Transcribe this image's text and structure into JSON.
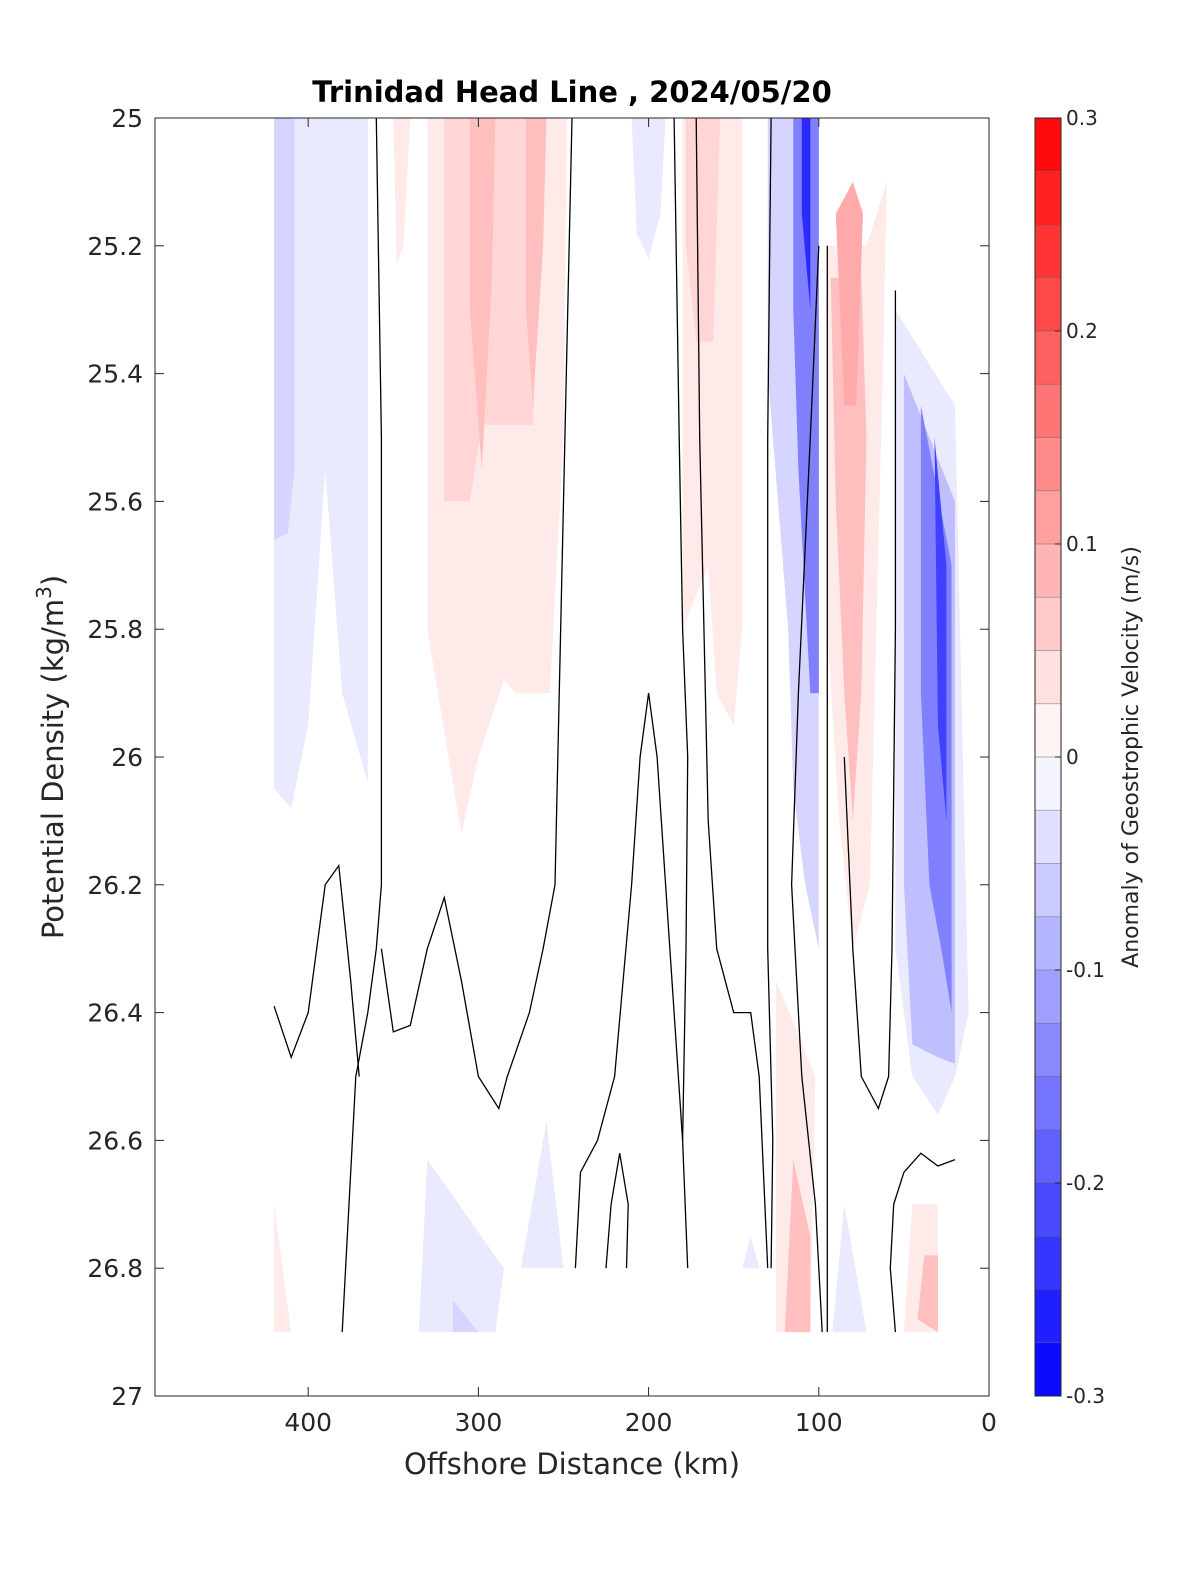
{
  "chart_data": {
    "type": "heatmap",
    "title": "Trinidad Head Line , 2024/05/20",
    "xlabel": "Offshore Distance (km)",
    "ylabel_main": "Potential Density (kg/m",
    "ylabel_sup": "3",
    "ylabel_close": ")",
    "colorbar_label": "Anomaly of Geostrophic Velocity (m/s)",
    "xlim": [
      490,
      0
    ],
    "ylim": [
      25,
      27
    ],
    "x_reversed": true,
    "y_reversed": true,
    "x_ticks": [
      400,
      300,
      200,
      100,
      0
    ],
    "x_tick_labels": [
      "400",
      "300",
      "200",
      "100",
      "0"
    ],
    "y_ticks": [
      25,
      25.2,
      25.4,
      25.6,
      25.8,
      26,
      26.2,
      26.4,
      26.6,
      26.8,
      27
    ],
    "y_tick_labels": [
      "25",
      "25.2",
      "25.4",
      "25.6",
      "25.8",
      "26",
      "26.2",
      "26.4",
      "26.6",
      "26.8",
      "27"
    ],
    "colorbar_range": [
      -0.3,
      0.3
    ],
    "colorbar_step": 0.025,
    "colorbar_ticks": [
      0.3,
      0.2,
      0.1,
      0,
      -0.1,
      -0.2,
      -0.3
    ],
    "colorbar_tick_labels": [
      "0.3",
      "0.2",
      "0.1",
      "0",
      "-0.1",
      "-0.2",
      "-0.3"
    ],
    "colormap_low": "#0000ff",
    "colormap_mid": "#ffffff",
    "colormap_high": "#ff0000",
    "zero_contour_color": "#000000",
    "regions": [
      {
        "v": -0.025,
        "pts": [
          [
            420,
            25
          ],
          [
            365,
            25
          ],
          [
            365,
            26.04
          ],
          [
            380,
            25.9
          ],
          [
            390,
            25.55
          ],
          [
            400,
            25.95
          ],
          [
            410,
            26.08
          ],
          [
            420,
            26.05
          ]
        ]
      },
      {
        "v": -0.05,
        "pts": [
          [
            420,
            25
          ],
          [
            408,
            25
          ],
          [
            408,
            25.55
          ],
          [
            412,
            25.65
          ],
          [
            420,
            25.66
          ]
        ]
      },
      {
        "v": 0.025,
        "pts": [
          [
            350,
            25
          ],
          [
            340,
            25
          ],
          [
            344,
            25.2
          ],
          [
            348,
            25.23
          ]
        ]
      },
      {
        "v": 0.025,
        "pts": [
          [
            330,
            25
          ],
          [
            248,
            25
          ],
          [
            250,
            25.5
          ],
          [
            258,
            25.9
          ],
          [
            278,
            25.9
          ],
          [
            285,
            25.88
          ],
          [
            300,
            26
          ],
          [
            310,
            26.12
          ],
          [
            330,
            25.8
          ]
        ]
      },
      {
        "v": 0.05,
        "pts": [
          [
            320,
            25
          ],
          [
            262,
            25
          ],
          [
            268,
            25.48
          ],
          [
            298,
            25.48
          ],
          [
            305,
            25.6
          ],
          [
            320,
            25.6
          ]
        ]
      },
      {
        "v": 0.075,
        "pts": [
          [
            305,
            25
          ],
          [
            290,
            25
          ],
          [
            292,
            25.25
          ],
          [
            298,
            25.55
          ],
          [
            305,
            25.3
          ]
        ]
      },
      {
        "v": 0.075,
        "pts": [
          [
            272,
            25
          ],
          [
            260,
            25
          ],
          [
            262,
            25.2
          ],
          [
            268,
            25.45
          ],
          [
            272,
            25.3
          ]
        ]
      },
      {
        "v": -0.025,
        "pts": [
          [
            210,
            25
          ],
          [
            190,
            25
          ],
          [
            193,
            25.15
          ],
          [
            200,
            25.22
          ],
          [
            207,
            25.18
          ]
        ]
      },
      {
        "v": 0.025,
        "pts": [
          [
            180,
            25
          ],
          [
            145,
            25
          ],
          [
            145,
            25.8
          ],
          [
            150,
            25.95
          ],
          [
            160,
            25.9
          ],
          [
            165,
            25.7
          ],
          [
            180,
            25.8
          ]
        ]
      },
      {
        "v": 0.05,
        "pts": [
          [
            178,
            25
          ],
          [
            158,
            25
          ],
          [
            162,
            25.35
          ],
          [
            172,
            25.35
          ],
          [
            178,
            25.2
          ]
        ]
      },
      {
        "v": -0.05,
        "pts": [
          [
            130,
            25
          ],
          [
            100,
            25
          ],
          [
            100,
            26.3
          ],
          [
            108,
            26.2
          ],
          [
            115,
            26.05
          ],
          [
            118,
            25.8
          ],
          [
            130,
            25.4
          ]
        ]
      },
      {
        "v": -0.15,
        "pts": [
          [
            115,
            25
          ],
          [
            100,
            25
          ],
          [
            100,
            25.9
          ],
          [
            105,
            25.9
          ],
          [
            112,
            25.55
          ],
          [
            115,
            25.3
          ]
        ]
      },
      {
        "v": -0.25,
        "pts": [
          [
            110,
            25
          ],
          [
            105,
            25
          ],
          [
            105,
            25.3
          ],
          [
            110,
            25.15
          ]
        ]
      },
      {
        "v": 0.025,
        "pts": [
          [
            95,
            25.2
          ],
          [
            72,
            25.2
          ],
          [
            60,
            25.1
          ],
          [
            62,
            25.35
          ],
          [
            70,
            26.2
          ],
          [
            80,
            26.3
          ],
          [
            88,
            26.1
          ],
          [
            95,
            25.8
          ]
        ]
      },
      {
        "v": 0.075,
        "pts": [
          [
            93,
            25.25
          ],
          [
            75,
            25.25
          ],
          [
            72,
            25.5
          ],
          [
            75,
            25.9
          ],
          [
            80,
            26.1
          ],
          [
            85,
            25.9
          ],
          [
            90,
            25.6
          ]
        ]
      },
      {
        "v": 0.1,
        "pts": [
          [
            90,
            25.15
          ],
          [
            80,
            25.1
          ],
          [
            74,
            25.15
          ],
          [
            78,
            25.45
          ],
          [
            85,
            25.45
          ]
        ]
      },
      {
        "v": -0.025,
        "pts": [
          [
            55,
            25.3
          ],
          [
            20,
            25.45
          ],
          [
            12,
            26.4
          ],
          [
            20,
            26.5
          ],
          [
            30,
            26.56
          ],
          [
            45,
            26.5
          ],
          [
            55,
            26.3
          ]
        ]
      },
      {
        "v": -0.075,
        "pts": [
          [
            50,
            25.4
          ],
          [
            20,
            25.6
          ],
          [
            20,
            26.48
          ],
          [
            30,
            26.47
          ],
          [
            45,
            26.45
          ],
          [
            50,
            26.2
          ]
        ]
      },
      {
        "v": -0.15,
        "pts": [
          [
            40,
            25.45
          ],
          [
            22,
            25.7
          ],
          [
            22,
            26.4
          ],
          [
            28,
            26.3
          ],
          [
            35,
            26.2
          ],
          [
            40,
            25.9
          ]
        ]
      },
      {
        "v": -0.225,
        "pts": [
          [
            32,
            25.5
          ],
          [
            25,
            25.7
          ],
          [
            25,
            26.1
          ],
          [
            30,
            25.95
          ]
        ]
      },
      {
        "v": 0.025,
        "pts": [
          [
            420,
            26.7
          ],
          [
            410,
            26.9
          ],
          [
            420,
            26.9
          ]
        ]
      },
      {
        "v": -0.025,
        "pts": [
          [
            330,
            26.63
          ],
          [
            285,
            26.8
          ],
          [
            290,
            26.9
          ],
          [
            335,
            26.9
          ]
        ]
      },
      {
        "v": -0.05,
        "pts": [
          [
            315,
            26.85
          ],
          [
            300,
            26.9
          ],
          [
            315,
            26.9
          ]
        ]
      },
      {
        "v": -0.025,
        "pts": [
          [
            260,
            26.57
          ],
          [
            250,
            26.8
          ],
          [
            275,
            26.8
          ]
        ]
      },
      {
        "v": -0.025,
        "pts": [
          [
            140,
            26.75
          ],
          [
            135,
            26.8
          ],
          [
            145,
            26.8
          ]
        ]
      },
      {
        "v": 0.025,
        "pts": [
          [
            125,
            26.35
          ],
          [
            102,
            26.5
          ],
          [
            105,
            26.9
          ],
          [
            125,
            26.9
          ]
        ]
      },
      {
        "v": 0.075,
        "pts": [
          [
            115,
            26.63
          ],
          [
            105,
            26.75
          ],
          [
            105,
            26.9
          ],
          [
            120,
            26.9
          ]
        ]
      },
      {
        "v": -0.025,
        "pts": [
          [
            85,
            26.7
          ],
          [
            72,
            26.9
          ],
          [
            92,
            26.9
          ]
        ]
      },
      {
        "v": 0.025,
        "pts": [
          [
            45,
            26.7
          ],
          [
            30,
            26.7
          ],
          [
            30,
            26.9
          ],
          [
            50,
            26.9
          ]
        ]
      },
      {
        "v": 0.075,
        "pts": [
          [
            38,
            26.78
          ],
          [
            30,
            26.78
          ],
          [
            30,
            26.9
          ],
          [
            42,
            26.88
          ]
        ]
      }
    ],
    "contours": [
      [
        [
          360,
          25
        ],
        [
          357,
          25.5
        ],
        [
          357,
          26.2
        ],
        [
          360,
          26.3
        ],
        [
          365,
          26.4
        ],
        [
          372,
          26.5
        ],
        [
          378,
          26.8
        ],
        [
          380,
          26.9
        ]
      ],
      [
        [
          245,
          25
        ],
        [
          250,
          25.6
        ],
        [
          255,
          26.2
        ],
        [
          262,
          26.3
        ],
        [
          270,
          26.4
        ],
        [
          283,
          26.5
        ],
        [
          288,
          26.55
        ],
        [
          300,
          26.5
        ],
        [
          310,
          26.35
        ],
        [
          320,
          26.22
        ],
        [
          330,
          26.3
        ],
        [
          340,
          26.42
        ],
        [
          350,
          26.43
        ],
        [
          357,
          26.3
        ]
      ],
      [
        [
          420,
          26.39
        ],
        [
          410,
          26.47
        ],
        [
          400,
          26.4
        ],
        [
          390,
          26.2
        ],
        [
          382,
          26.17
        ],
        [
          375,
          26.35
        ],
        [
          370,
          26.5
        ]
      ],
      [
        [
          185,
          25
        ],
        [
          182,
          25.5
        ],
        [
          180,
          25.8
        ],
        [
          177,
          26
        ],
        [
          178,
          26.3
        ],
        [
          180,
          26.6
        ],
        [
          177,
          26.8
        ]
      ],
      [
        [
          243,
          26.8
        ],
        [
          240,
          26.65
        ],
        [
          230,
          26.6
        ],
        [
          220,
          26.5
        ],
        [
          210,
          26.2
        ],
        [
          205,
          26
        ],
        [
          200,
          25.9
        ],
        [
          195,
          26
        ],
        [
          190,
          26.2
        ],
        [
          185,
          26.4
        ],
        [
          180,
          26.6
        ]
      ],
      [
        [
          225,
          26.8
        ],
        [
          222,
          26.7
        ],
        [
          217,
          26.62
        ],
        [
          212,
          26.7
        ],
        [
          213,
          26.8
        ]
      ],
      [
        [
          128,
          25
        ],
        [
          130,
          25.5
        ],
        [
          130,
          26.3
        ],
        [
          127,
          26.6
        ],
        [
          128,
          26.8
        ]
      ],
      [
        [
          172,
          25
        ],
        [
          170,
          25.5
        ],
        [
          165,
          26.1
        ],
        [
          160,
          26.3
        ],
        [
          150,
          26.4
        ],
        [
          140,
          26.4
        ],
        [
          135,
          26.5
        ],
        [
          130,
          26.8
        ]
      ],
      [
        [
          95,
          25.2
        ],
        [
          95,
          26.9
        ]
      ],
      [
        [
          100,
          25.2
        ],
        [
          105,
          25.5
        ],
        [
          112,
          25.9
        ],
        [
          116,
          26.2
        ],
        [
          110,
          26.5
        ],
        [
          102,
          26.7
        ],
        [
          98,
          26.9
        ]
      ],
      [
        [
          55,
          25.27
        ],
        [
          55,
          25.8
        ],
        [
          57,
          26.3
        ],
        [
          59,
          26.5
        ],
        [
          65,
          26.55
        ],
        [
          75,
          26.5
        ],
        [
          80,
          26.3
        ],
        [
          85,
          26.0
        ]
      ],
      [
        [
          55,
          26.9
        ],
        [
          58,
          26.8
        ],
        [
          56,
          26.7
        ],
        [
          50,
          26.65
        ],
        [
          40,
          26.62
        ],
        [
          30,
          26.64
        ],
        [
          20,
          26.63
        ]
      ]
    ]
  }
}
